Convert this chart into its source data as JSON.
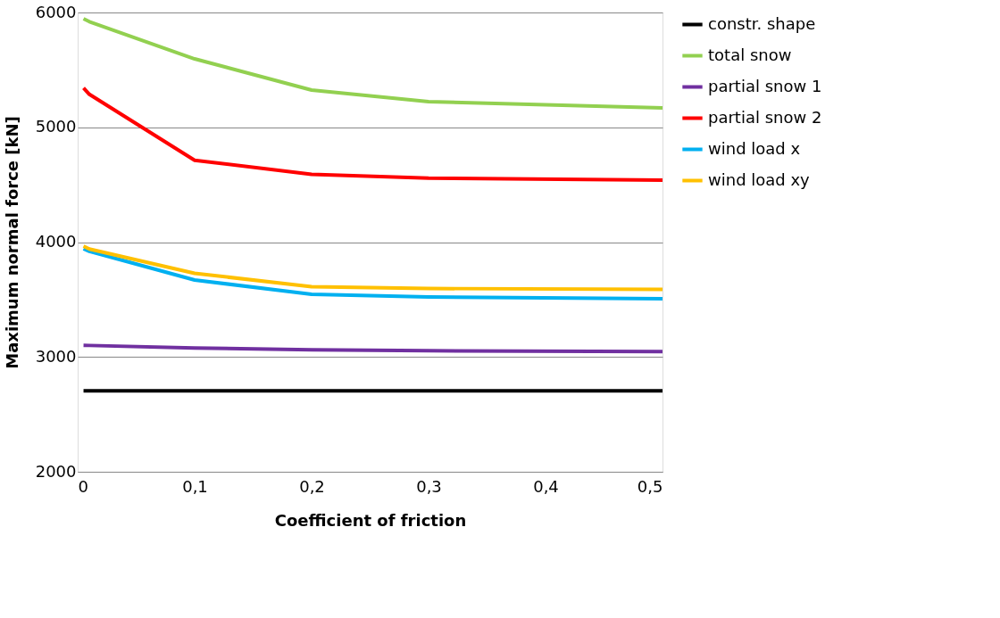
{
  "chart_data": {
    "type": "line",
    "xlabel": "Coefficient of friction",
    "ylabel": "Maximum normal force [kN]",
    "x": [
      0.005,
      0.01,
      0.1,
      0.2,
      0.3,
      0.5
    ],
    "series": [
      {
        "name": "constr. shape",
        "color": "#000000",
        "values": [
          2705,
          2705,
          2705,
          2705,
          2705,
          2705
        ]
      },
      {
        "name": "total snow",
        "color": "#92d050",
        "values": [
          5946,
          5920,
          5596,
          5324,
          5223,
          5169
        ]
      },
      {
        "name": "partial snow 1",
        "color": "#7030a0",
        "values": [
          3101,
          3100,
          3078,
          3062,
          3054,
          3047
        ]
      },
      {
        "name": "partial snow 2",
        "color": "#ff0000",
        "values": [
          5342,
          5287,
          4713,
          4590,
          4557,
          4540
        ]
      },
      {
        "name": "wind load x",
        "color": "#00b0f0",
        "values": [
          3942,
          3920,
          3670,
          3546,
          3523,
          3507
        ]
      },
      {
        "name": "wind load xy",
        "color": "#ffc000",
        "values": [
          3965,
          3940,
          3728,
          3612,
          3596,
          3588
        ]
      }
    ],
    "xlim": [
      0,
      0.5
    ],
    "xticks": [
      0,
      {
        "value": 0.1,
        "label": "0,1"
      },
      {
        "value": 0.2,
        "label": "0,2"
      },
      {
        "value": 0.3,
        "label": "0,3"
      },
      {
        "value": 0.4,
        "label": "0,4"
      },
      {
        "value": 0.5,
        "label": "0,5"
      }
    ],
    "ylim": [
      2000,
      6000
    ],
    "yticks": [
      2000,
      3000,
      4000,
      5000,
      6000
    ],
    "grid": "y",
    "legend": "right",
    "marker": "none",
    "line_style": "solid"
  }
}
